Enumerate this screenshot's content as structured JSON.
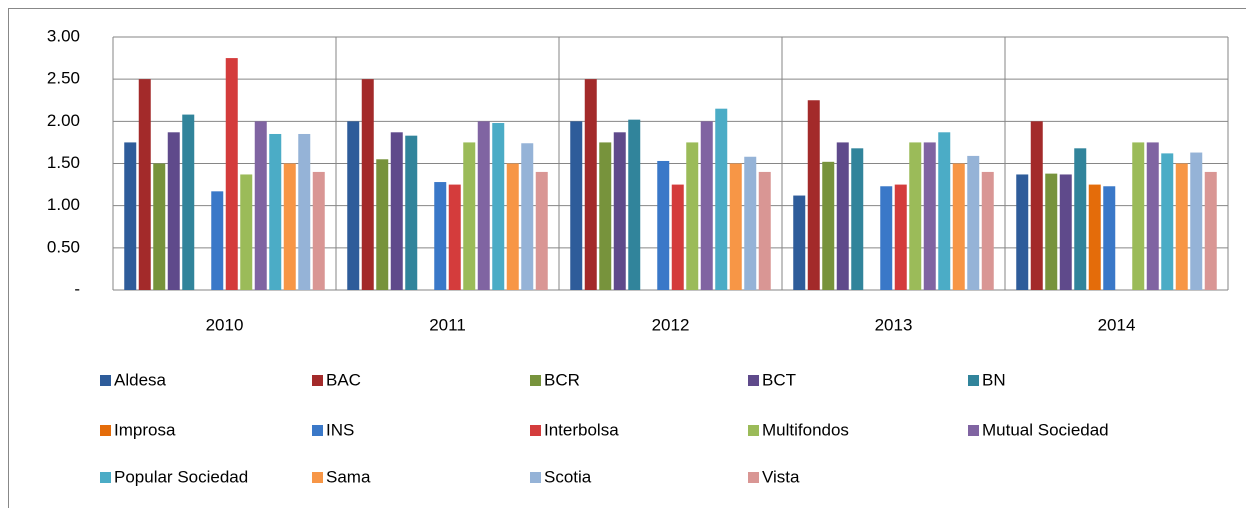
{
  "chart_data": {
    "type": "bar",
    "categories": [
      "2010",
      "2011",
      "2012",
      "2013",
      "2014"
    ],
    "series": [
      {
        "name": "Aldesa",
        "color": "#2e5c9a",
        "values": [
          1.75,
          2.0,
          2.0,
          1.12,
          1.37
        ]
      },
      {
        "name": "BAC",
        "color": "#a32a2a",
        "values": [
          2.5,
          2.5,
          2.5,
          2.25,
          2.0
        ]
      },
      {
        "name": "BCR",
        "color": "#77933c",
        "values": [
          1.5,
          1.55,
          1.75,
          1.52,
          1.38
        ]
      },
      {
        "name": "BCT",
        "color": "#5f4a8b",
        "values": [
          1.87,
          1.87,
          1.87,
          1.75,
          1.37
        ]
      },
      {
        "name": "BN",
        "color": "#31849b",
        "values": [
          2.08,
          1.83,
          2.02,
          1.68,
          1.68
        ]
      },
      {
        "name": "Improsa",
        "color": "#e46c0a",
        "values": [
          null,
          null,
          null,
          null,
          1.25
        ]
      },
      {
        "name": "INS",
        "color": "#3a78c8",
        "values": [
          1.17,
          1.28,
          1.53,
          1.23,
          1.23
        ]
      },
      {
        "name": "Interbolsa",
        "color": "#d43c3c",
        "values": [
          2.75,
          1.25,
          1.25,
          1.25,
          null
        ]
      },
      {
        "name": "Multifondos",
        "color": "#9bbb59",
        "values": [
          1.37,
          1.75,
          1.75,
          1.75,
          1.75
        ]
      },
      {
        "name": "Mutual Sociedad",
        "color": "#8064a2",
        "values": [
          2.0,
          2.0,
          2.0,
          1.75,
          1.75
        ]
      },
      {
        "name": "Popular Sociedad",
        "color": "#4bacc6",
        "values": [
          1.85,
          1.98,
          2.15,
          1.87,
          1.62
        ]
      },
      {
        "name": "Sama",
        "color": "#f79646",
        "values": [
          1.5,
          1.5,
          1.5,
          1.5,
          1.5
        ]
      },
      {
        "name": "Scotia",
        "color": "#95b3d7",
        "values": [
          1.85,
          1.74,
          1.58,
          1.59,
          1.63
        ]
      },
      {
        "name": "Vista",
        "color": "#d99694",
        "values": [
          1.4,
          1.4,
          1.4,
          1.4,
          1.4
        ]
      }
    ],
    "ylim": [
      0,
      3
    ],
    "yticks": [
      {
        "value": 0,
        "label": "-"
      },
      {
        "value": 0.5,
        "label": "0.50"
      },
      {
        "value": 1,
        "label": "1.00"
      },
      {
        "value": 1.5,
        "label": "1.50"
      },
      {
        "value": 2,
        "label": "2.00"
      },
      {
        "value": 2.5,
        "label": "2.50"
      },
      {
        "value": 3,
        "label": "3.00"
      }
    ],
    "grid": true
  }
}
